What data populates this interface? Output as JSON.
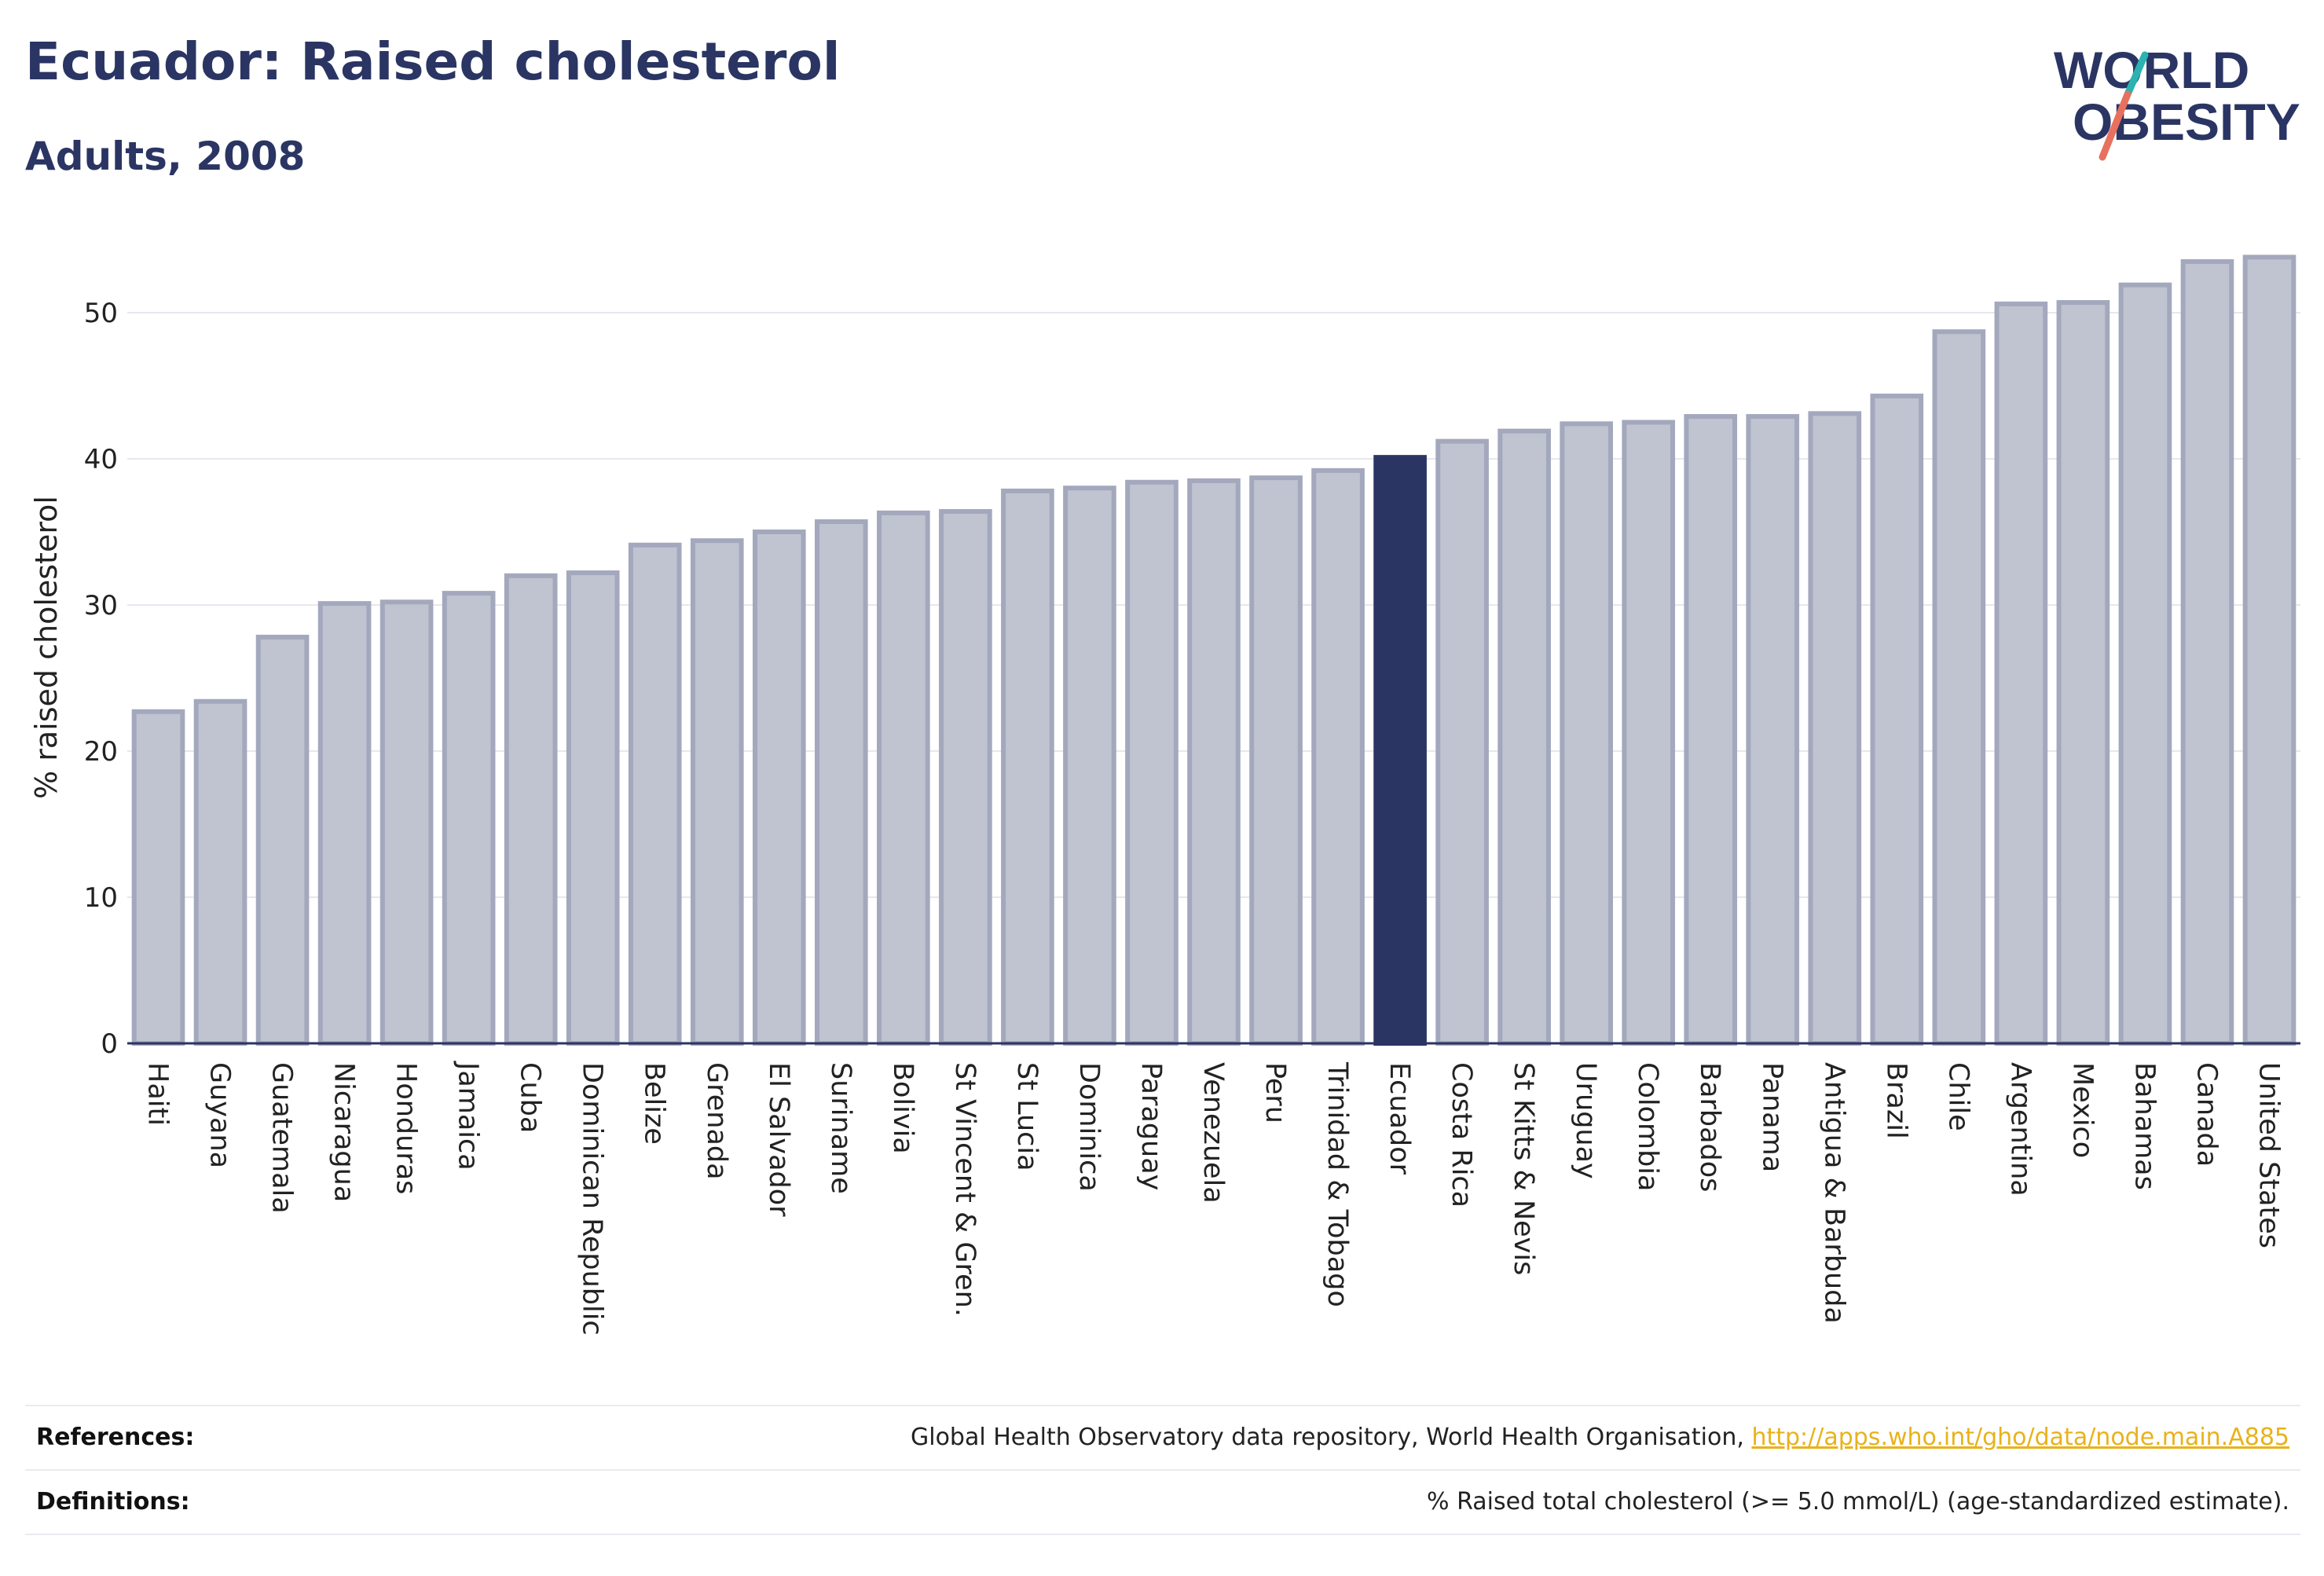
{
  "header": {
    "title": "Ecuador: Raised cholesterol",
    "subtitle": "Adults, 2008"
  },
  "logo": {
    "line1": "WORLD",
    "line2": "OBESITY",
    "colors": {
      "text": "#2b3563",
      "stroke_teal": "#2ab3b1",
      "stroke_coral": "#e8705e"
    }
  },
  "chart_data": {
    "type": "bar",
    "title": "Ecuador: Raised cholesterol",
    "subtitle": "Adults, 2008",
    "ylabel": "% raised cholesterol",
    "xlabel": "",
    "ylim": [
      0,
      55
    ],
    "yticks": [
      0,
      10,
      20,
      30,
      40,
      50
    ],
    "grid": true,
    "highlight": "Ecuador",
    "colors": {
      "bar": "#c0c3d0",
      "bar_edge": "#a3a8bd",
      "highlight": "#2b3563"
    },
    "categories": [
      "Haiti",
      "Guyana",
      "Guatemala",
      "Nicaragua",
      "Honduras",
      "Jamaica",
      "Cuba",
      "Dominican Republic",
      "Belize",
      "Grenada",
      "El Salvador",
      "Suriname",
      "Bolivia",
      "St Vincent & Gren.",
      "St Lucia",
      "Dominica",
      "Paraguay",
      "Venezuela",
      "Peru",
      "Trinidad & Tobago",
      "Ecuador",
      "Costa Rica",
      "St Kitts & Nevis",
      "Uruguay",
      "Colombia",
      "Barbados",
      "Panama",
      "Antigua & Barbuda",
      "Brazil",
      "Chile",
      "Argentina",
      "Mexico",
      "Bahamas",
      "Canada",
      "United States"
    ],
    "values": [
      22.7,
      23.4,
      27.8,
      30.1,
      30.2,
      30.8,
      32.0,
      32.2,
      34.1,
      34.4,
      35.0,
      35.7,
      36.3,
      36.4,
      37.8,
      38.0,
      38.4,
      38.5,
      38.7,
      39.2,
      40.1,
      41.2,
      41.9,
      42.4,
      42.5,
      42.9,
      42.9,
      43.1,
      44.3,
      48.7,
      50.6,
      50.7,
      51.9,
      53.5,
      53.8
    ]
  },
  "footer": {
    "references_label": "References:",
    "references_text": "Global Health Observatory data repository, World Health Organisation,",
    "references_link": "http://apps.who.int/gho/data/node.main.A885",
    "definitions_label": "Definitions:",
    "definitions_text": "% Raised total cholesterol (>= 5.0 mmol/L) (age-standardized estimate)."
  }
}
